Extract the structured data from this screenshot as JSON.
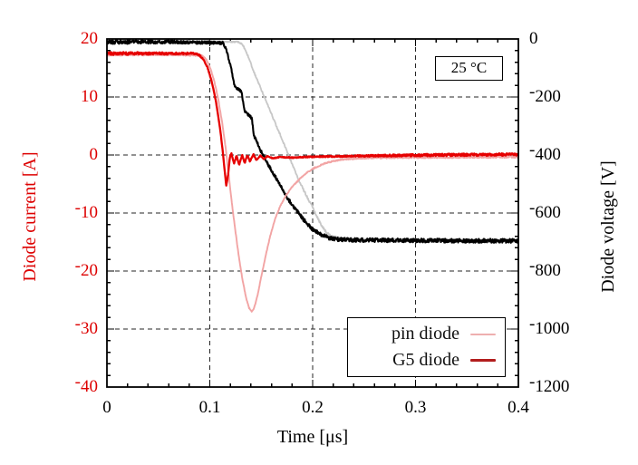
{
  "chart_data": {
    "type": "line",
    "title": "",
    "xlabel": "Time [μs]",
    "ylabel_left": "Diode current [A]",
    "ylabel_right": "Diode voltage [V]",
    "annotation": "25 °C",
    "grid": true,
    "x_axis": {
      "range": [
        0,
        0.4
      ],
      "tick_values": [
        0,
        0.1,
        0.2,
        0.3,
        0.4
      ],
      "tick_labels": [
        "0",
        "0.1",
        "0.2",
        "0.3",
        "0.4"
      ],
      "minor_step": 0.02
    },
    "y_left_axis": {
      "range": [
        -40,
        20
      ],
      "tick_values": [
        20,
        10,
        0,
        -10,
        -20,
        -30,
        -40
      ],
      "tick_labels": [
        "20",
        "10",
        "0",
        "-10",
        "-20",
        "-30",
        "-40"
      ],
      "minor_step": 2,
      "color": "#dd0000"
    },
    "y_right_axis": {
      "range": [
        -1200,
        0
      ],
      "tick_values": [
        0,
        -200,
        -400,
        -600,
        -800,
        -1000,
        -1200
      ],
      "tick_labels": [
        "0",
        "-200",
        "-400",
        "-600",
        "-800",
        "-1000",
        "-1200"
      ],
      "minor_step": 40,
      "color": "#000000"
    },
    "legend": [
      {
        "label": "pin diode",
        "color": "#eeafaf",
        "thickness": 2
      },
      {
        "label": "G5 diode",
        "color": "#b21d1d",
        "thickness": 3
      }
    ],
    "series": [
      {
        "name": "pin-diode-voltage",
        "axis": "right",
        "color": "#c7c7c7",
        "width": 1.8,
        "seed": 11,
        "noise": [
          [
            0,
            2.5
          ],
          [
            0.12,
            2
          ],
          [
            0.2,
            3.5
          ],
          [
            0.28,
            5
          ],
          [
            0.4,
            5.5
          ]
        ],
        "points": [
          [
            0,
            -8
          ],
          [
            0.09,
            -8
          ],
          [
            0.128,
            -10
          ],
          [
            0.132,
            -20
          ],
          [
            0.1355,
            -45
          ],
          [
            0.1385,
            -70
          ],
          [
            0.1413,
            -100
          ],
          [
            0.146,
            -140
          ],
          [
            0.15,
            -174
          ],
          [
            0.154,
            -208
          ],
          [
            0.158,
            -242
          ],
          [
            0.162,
            -276
          ],
          [
            0.166,
            -310
          ],
          [
            0.171,
            -352
          ],
          [
            0.1765,
            -400
          ],
          [
            0.182,
            -448
          ],
          [
            0.187,
            -490
          ],
          [
            0.1925,
            -530
          ],
          [
            0.1956,
            -552
          ],
          [
            0.2,
            -580
          ],
          [
            0.2045,
            -615
          ],
          [
            0.2088,
            -645
          ],
          [
            0.2135,
            -667
          ],
          [
            0.219,
            -680
          ],
          [
            0.227,
            -688
          ],
          [
            0.245,
            -692
          ],
          [
            0.28,
            -694
          ],
          [
            0.33,
            -695
          ],
          [
            0.4,
            -696
          ]
        ]
      },
      {
        "name": "g5-diode-voltage",
        "axis": "right",
        "color": "#000000",
        "width": 2.1,
        "seed": 22,
        "noise": [
          [
            0,
            7
          ],
          [
            0.111,
            5
          ],
          [
            0.125,
            4
          ],
          [
            0.15,
            5
          ],
          [
            0.2,
            6.5
          ],
          [
            0.4,
            7
          ]
        ],
        "points": [
          [
            0,
            -10
          ],
          [
            0.07,
            -10
          ],
          [
            0.113,
            -14
          ],
          [
            0.116,
            -35
          ],
          [
            0.1185,
            -70
          ],
          [
            0.121,
            -105
          ],
          [
            0.1225,
            -135
          ],
          [
            0.124,
            -160
          ],
          [
            0.126,
            -170
          ],
          [
            0.129,
            -175
          ],
          [
            0.131,
            -185
          ],
          [
            0.1325,
            -220
          ],
          [
            0.134,
            -248
          ],
          [
            0.136,
            -258
          ],
          [
            0.1385,
            -264
          ],
          [
            0.141,
            -275
          ],
          [
            0.1427,
            -333
          ],
          [
            0.146,
            -355
          ],
          [
            0.1486,
            -380
          ],
          [
            0.1515,
            -398
          ],
          [
            0.1545,
            -420
          ],
          [
            0.158,
            -440
          ],
          [
            0.1615,
            -462
          ],
          [
            0.1655,
            -485
          ],
          [
            0.17,
            -515
          ],
          [
            0.175,
            -545
          ],
          [
            0.18,
            -572
          ],
          [
            0.1855,
            -597
          ],
          [
            0.191,
            -622
          ],
          [
            0.1965,
            -645
          ],
          [
            0.2025,
            -663
          ],
          [
            0.209,
            -676
          ],
          [
            0.216,
            -686
          ],
          [
            0.225,
            -691
          ],
          [
            0.24,
            -693
          ],
          [
            0.27,
            -694
          ],
          [
            0.32,
            -695
          ],
          [
            0.4,
            -696
          ]
        ]
      },
      {
        "name": "pin-diode-current",
        "axis": "left",
        "color": "#f2a4a4",
        "width": 1.9,
        "seed": 33,
        "noise": [
          [
            0,
            0.18
          ],
          [
            0.09,
            0.12
          ],
          [
            0.15,
            0.08
          ],
          [
            0.22,
            0.1
          ],
          [
            0.3,
            0.14
          ],
          [
            0.4,
            0.16
          ]
        ],
        "points": [
          [
            0,
            17.3
          ],
          [
            0.06,
            17.3
          ],
          [
            0.092,
            17.15
          ],
          [
            0.096,
            16.6
          ],
          [
            0.1,
            15.2
          ],
          [
            0.104,
            13.0
          ],
          [
            0.108,
            9.8
          ],
          [
            0.112,
            5.6
          ],
          [
            0.115,
            1.8
          ],
          [
            0.118,
            -2.8
          ],
          [
            0.121,
            -7.6
          ],
          [
            0.1245,
            -12.6
          ],
          [
            0.128,
            -17.2
          ],
          [
            0.1315,
            -21.2
          ],
          [
            0.135,
            -24.4
          ],
          [
            0.138,
            -26.3
          ],
          [
            0.1405,
            -27.0
          ],
          [
            0.143,
            -26.4
          ],
          [
            0.1465,
            -24.2
          ],
          [
            0.15,
            -21.0
          ],
          [
            0.1545,
            -17.2
          ],
          [
            0.159,
            -13.8
          ],
          [
            0.1635,
            -11.0
          ],
          [
            0.1685,
            -8.8
          ],
          [
            0.174,
            -7.0
          ],
          [
            0.18,
            -5.5
          ],
          [
            0.187,
            -4.2
          ],
          [
            0.194,
            -3.1
          ],
          [
            0.202,
            -2.2
          ],
          [
            0.211,
            -1.5
          ],
          [
            0.221,
            -1.0
          ],
          [
            0.233,
            -0.7
          ],
          [
            0.25,
            -0.55
          ],
          [
            0.28,
            -0.45
          ],
          [
            0.33,
            -0.4
          ],
          [
            0.4,
            -0.35
          ]
        ]
      },
      {
        "name": "g5-diode-current",
        "axis": "left",
        "color": "#e60000",
        "width": 2.3,
        "seed": 44,
        "noise": [
          [
            0,
            0.27
          ],
          [
            0.088,
            0.15
          ],
          [
            0.1,
            0.08
          ],
          [
            0.16,
            0.07
          ],
          [
            0.22,
            0.12
          ],
          [
            0.3,
            0.2
          ],
          [
            0.4,
            0.22
          ]
        ],
        "points": [
          [
            0,
            17.5
          ],
          [
            0.05,
            17.5
          ],
          [
            0.086,
            17.5
          ],
          [
            0.09,
            17.2
          ],
          [
            0.094,
            16.4
          ],
          [
            0.098,
            15.0
          ],
          [
            0.102,
            12.6
          ],
          [
            0.106,
            9.2
          ],
          [
            0.11,
            4.6
          ],
          [
            0.1125,
            0.8
          ],
          [
            0.1145,
            -2.8
          ],
          [
            0.116,
            -5.3
          ],
          [
            0.1178,
            -3.4
          ],
          [
            0.1195,
            -0.4
          ],
          [
            0.121,
            0.3
          ],
          [
            0.1235,
            -1.5
          ],
          [
            0.126,
            -0.1
          ],
          [
            0.1285,
            -1.7
          ],
          [
            0.1315,
            0.0
          ],
          [
            0.134,
            -1.4
          ],
          [
            0.1365,
            0.0
          ],
          [
            0.139,
            -1.1
          ],
          [
            0.1425,
            0.1
          ],
          [
            0.1455,
            -0.9
          ],
          [
            0.149,
            -0.1
          ],
          [
            0.1525,
            -0.7
          ],
          [
            0.156,
            -0.2
          ],
          [
            0.161,
            -0.55
          ],
          [
            0.168,
            -0.35
          ],
          [
            0.18,
            -0.45
          ],
          [
            0.2,
            -0.3
          ],
          [
            0.23,
            -0.2
          ],
          [
            0.27,
            -0.1
          ],
          [
            0.32,
            0.0
          ],
          [
            0.4,
            0.1
          ]
        ]
      }
    ]
  }
}
